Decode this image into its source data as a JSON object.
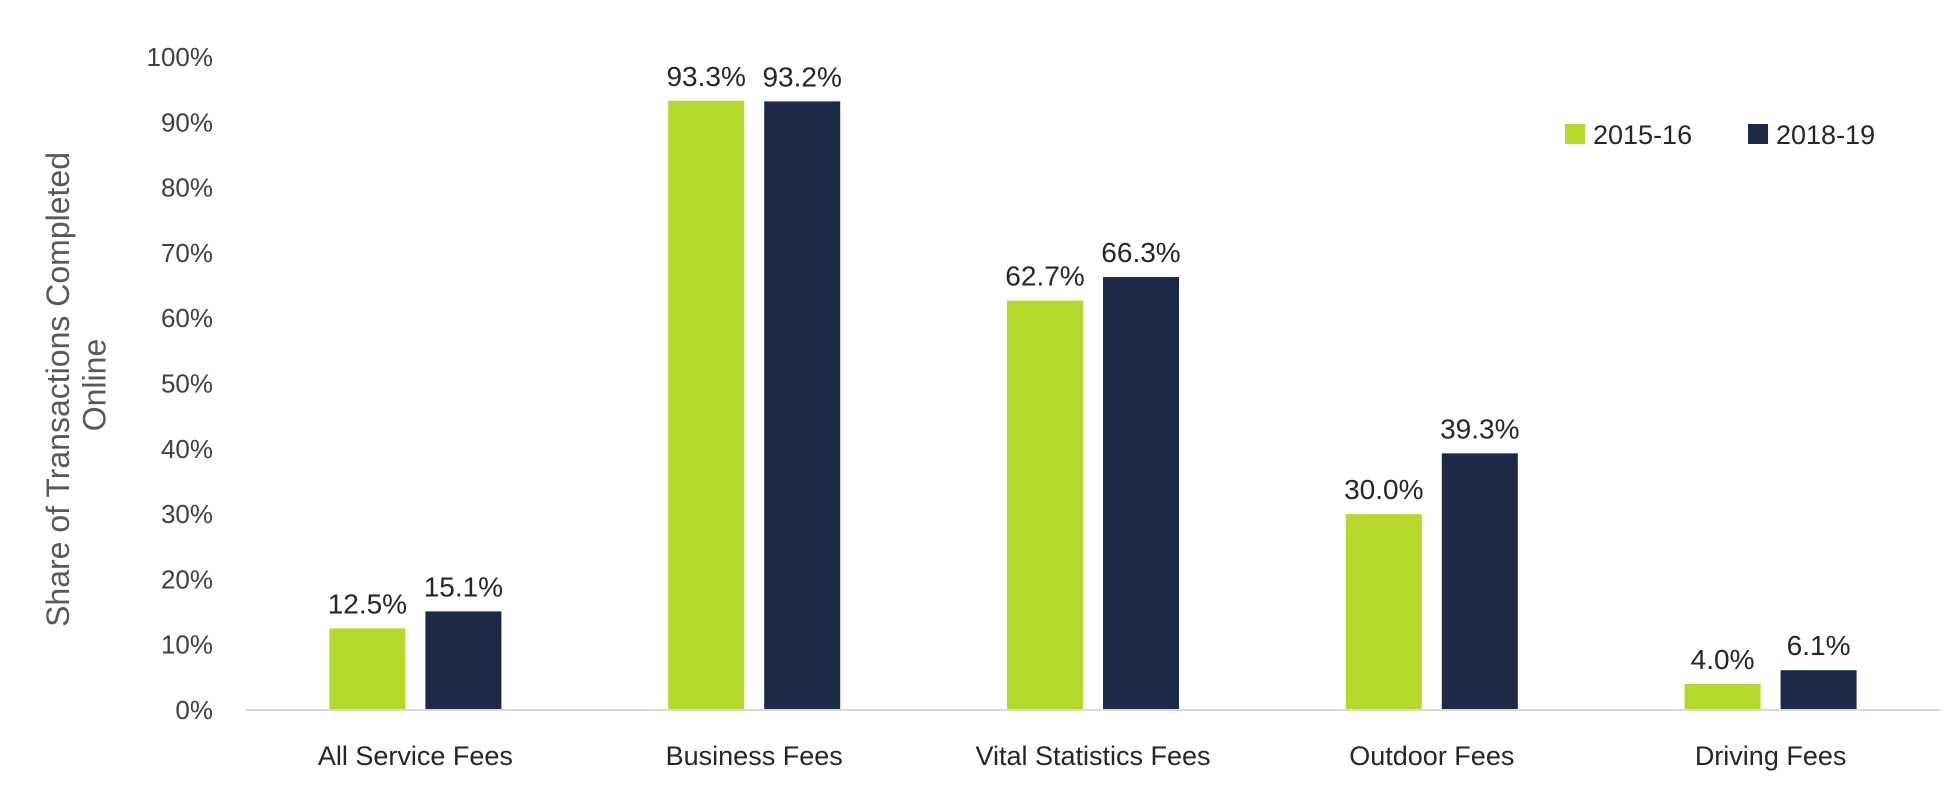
{
  "chart_data": {
    "type": "bar",
    "title": "",
    "xlabel": "",
    "ylabel": "Share of Transactions Completed Online",
    "ylabel_lines": [
      "Share of Transactions Completed",
      "Online"
    ],
    "ylim": [
      0,
      100
    ],
    "yticks": [
      "0%",
      "10%",
      "20%",
      "30%",
      "40%",
      "50%",
      "60%",
      "70%",
      "80%",
      "90%",
      "100%"
    ],
    "grid": false,
    "legend_position": "top-right",
    "categories": [
      "All Service Fees",
      "Business Fees",
      "Vital Statistics Fees",
      "Outdoor Fees",
      "Driving Fees"
    ],
    "series": [
      {
        "name": "2015-16",
        "color": "#b5d92a",
        "values": [
          12.5,
          93.3,
          62.7,
          30.0,
          4.0
        ],
        "labels": [
          "12.5%",
          "93.3%",
          "62.7%",
          "30.0%",
          "4.0%"
        ]
      },
      {
        "name": "2018-19",
        "color": "#1c2a48",
        "values": [
          15.1,
          93.2,
          66.3,
          39.3,
          6.1
        ],
        "labels": [
          "15.1%",
          "93.2%",
          "66.3%",
          "39.3%",
          "6.1%"
        ]
      }
    ]
  }
}
